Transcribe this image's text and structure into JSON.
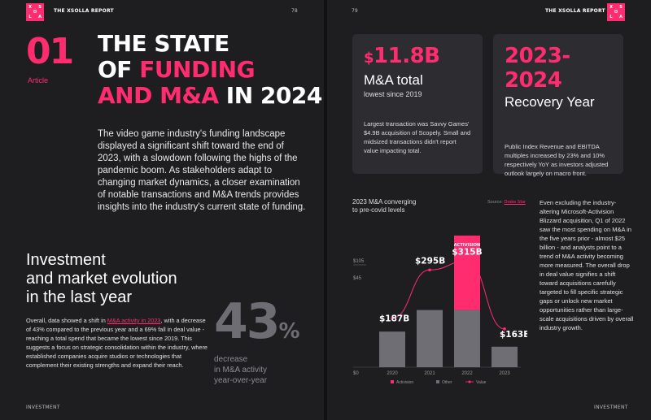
{
  "report_name": "THE XSOLLA REPORT",
  "logo_letters": [
    "X",
    "S",
    "O",
    "L",
    "L",
    "A"
  ],
  "left_page": {
    "page_number": "78",
    "article_number": "01",
    "article_label": "Article",
    "title_line1": "THE STATE",
    "title_line2_a": "OF ",
    "title_line2_b": "FUNDING",
    "title_line3_a": "AND M&A",
    "title_line3_b": " IN 2024",
    "intro": "The video game industry's funding landscape displayed a significant shift toward the end of 2023, with a slowdown following the highs of the pandemic boom. As stakeholders adapt to changing market dynamics, a closer examination of notable transactions and M&A trends provides insights into the industry's current state of funding.",
    "heading_line1": "Investment",
    "heading_line2": "and market evolution",
    "heading_line3": "in the last year",
    "body_before_link": "Overall, data showed a shift in ",
    "body_link": "M&A activity in 2023",
    "body_after_link": ", with a decrease of 43% compared to the previous year and a 69% fall in deal value - reaching a total spend that became the lowest since 2019. This suggests a focus on strategic consolidation within the industry, where established companies acquire studios or technologies that complement their existing strengths and expand their reach.",
    "stat_value": "43",
    "stat_unit": "%",
    "stat_caption_line1": "decrease",
    "stat_caption_line2": "in M&A activity",
    "stat_caption_line3": "year-over-year",
    "footer": "INVESTMENT"
  },
  "right_page": {
    "page_number": "79",
    "card1": {
      "currency": "$",
      "value": "11.8B",
      "title": "M&A total",
      "subtitle": "lowest since 2019",
      "description": "Largest transaction was Savvy Games' $4.9B acquisition of Scopely. Small and midsized transactions didn't report value impacting total."
    },
    "card2": {
      "value": "2023-2024",
      "title": "Recovery Year",
      "description": "Public Index Revenue and EBITDA multiples increased by 23% and 10% respectively YoY as investors adjusted outlook largely on macro front."
    },
    "chart_title_line1": "2023 M&A converging",
    "chart_title_line2": "to pre-covid levels",
    "source_label": "Source: ",
    "source_link": "Drake Star",
    "side_text": "Even excluding the industry-altering Microsoft-Activision Blizzard acquisition, Q1 of 2022 saw the most spending on M&A in the five years prior - almost $25 billion - and analysts point to a trend of M&A activity becoming more measured. The overall drop in deal value signifies a shift toward acquisitions carefully targeted to fill specific strategic gaps or unlock new market opportunities rather than large-scale acquisitions driven by overall industry growth.",
    "footer": "INVESTMENT"
  },
  "colors": {
    "accent": "#ff2d6f",
    "other_bar": "#6e6e74",
    "card_bg": "#2c2c31",
    "page_bg": "#1e1e21"
  },
  "chart_data": {
    "type": "bar",
    "categories": [
      "2020",
      "2021",
      "2022",
      "2023"
    ],
    "series": [
      {
        "name": "Other",
        "values": [
          33,
          53,
          53,
          19
        ]
      },
      {
        "name": "Activision",
        "values": [
          0,
          0,
          69,
          0
        ]
      },
      {
        "name": "Value",
        "values": [
          187,
          295,
          315,
          163
        ]
      }
    ],
    "value_labels": [
      "$187B",
      "$295B",
      "$315B",
      "$163B"
    ],
    "activision_label": "ACTIVISION",
    "y_ticks": [
      "$0",
      "$45",
      "$105"
    ],
    "ylim": [
      0,
      125
    ],
    "legend": [
      "Activision",
      "Other",
      "Value"
    ],
    "legend_position": "bottom"
  }
}
